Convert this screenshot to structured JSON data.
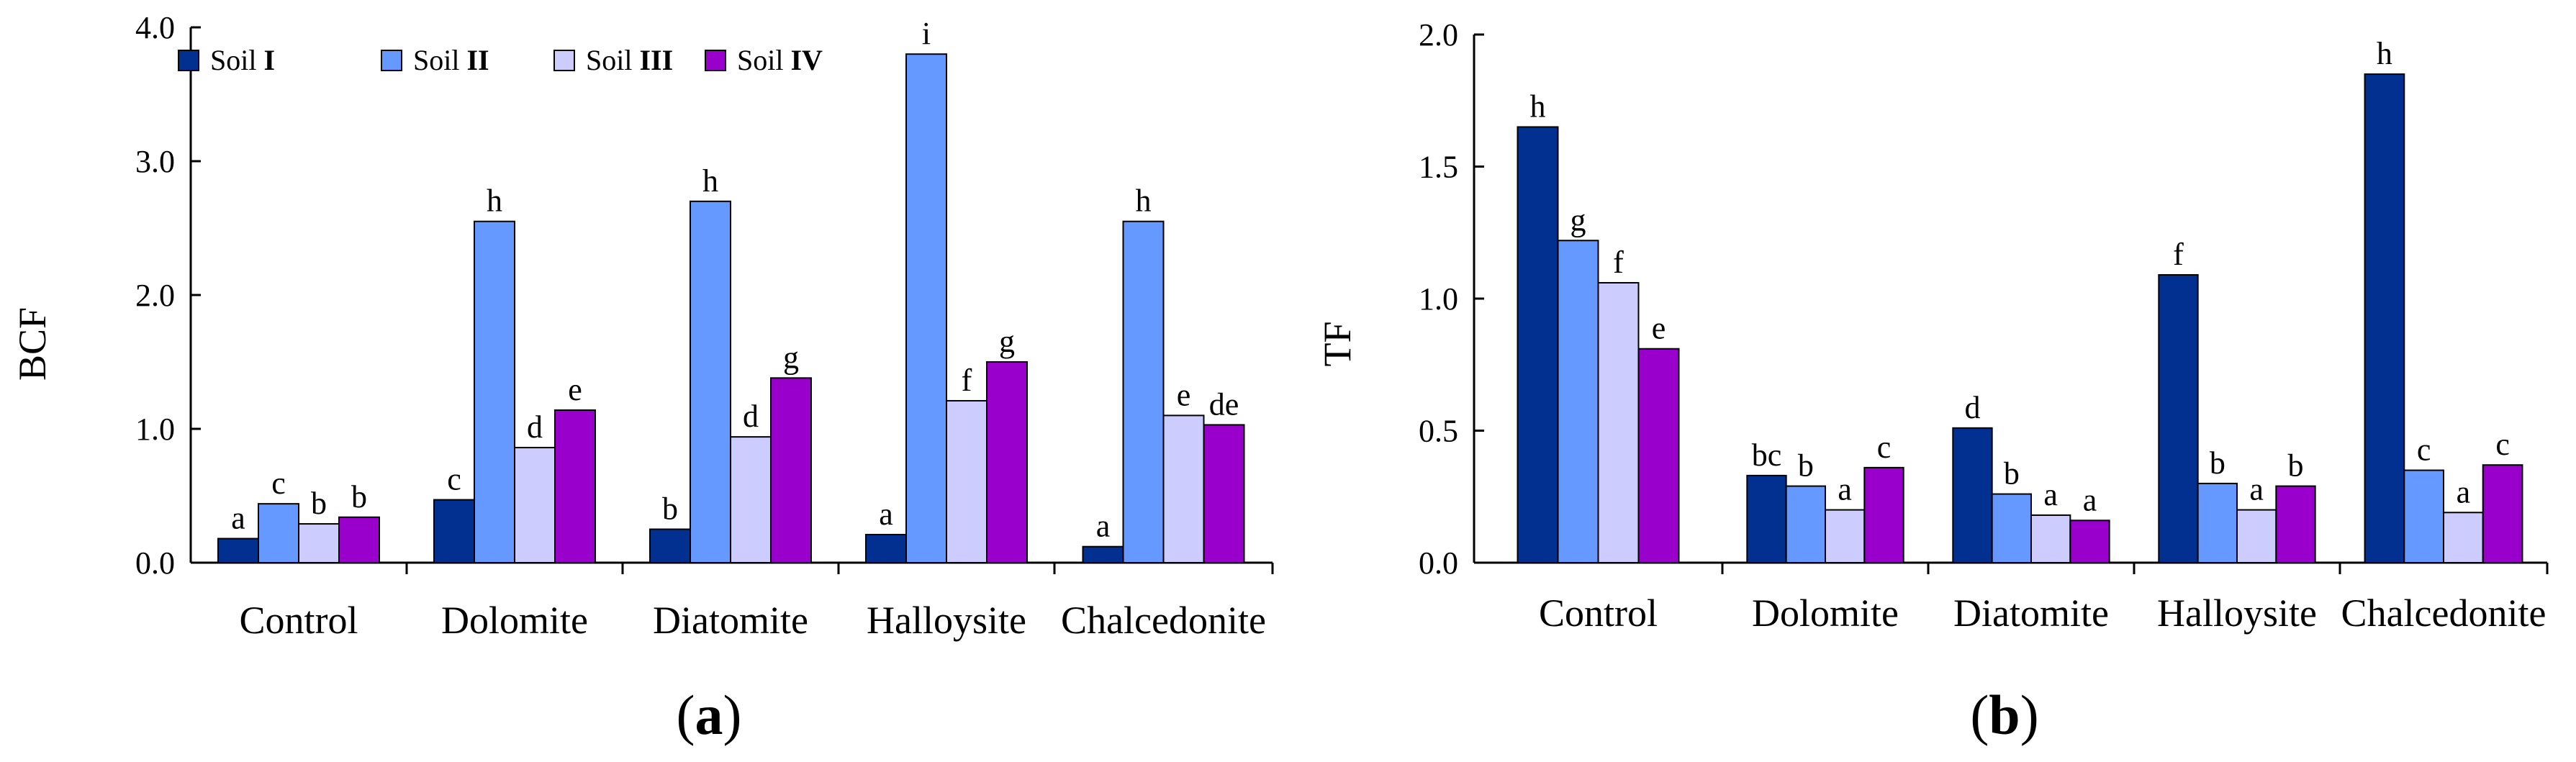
{
  "colors": {
    "soil_1": "#013090",
    "soil_2": "#6699FF",
    "soil_3": "#CCCCFF",
    "soil_4": "#9900CC",
    "bar_stroke": "#000000",
    "axis": "#000000"
  },
  "legend": [
    {
      "prefix": "Soil",
      "numeral": "I"
    },
    {
      "prefix": "Soil",
      "numeral": "II"
    },
    {
      "prefix": "Soil",
      "numeral": "III"
    },
    {
      "prefix": "Soil",
      "numeral": "IV"
    }
  ],
  "chart_data": [
    {
      "type": "bar",
      "panel_label": "a",
      "ylabel": "BCF",
      "xlabel": "",
      "ylim": [
        0,
        4
      ],
      "yticks": [
        "0.0",
        "1.0",
        "2.0",
        "3.0",
        "4.0"
      ],
      "categories": [
        "Control",
        "Dolomite",
        "Diatomite",
        "Halloysite",
        "Chalcedonite"
      ],
      "legend_position": "top-left",
      "series": [
        {
          "name": "Soil I",
          "values": [
            0.18,
            0.47,
            0.25,
            0.21,
            0.12
          ],
          "letters": [
            "a",
            "c",
            "b",
            "a",
            "a"
          ]
        },
        {
          "name": "Soil II",
          "values": [
            0.44,
            2.55,
            2.7,
            3.8,
            2.55
          ],
          "letters": [
            "c",
            "h",
            "h",
            "i",
            "h"
          ]
        },
        {
          "name": "Soil III",
          "values": [
            0.29,
            0.86,
            0.94,
            1.21,
            1.1
          ],
          "letters": [
            "b",
            "d",
            "d",
            "f",
            "e"
          ]
        },
        {
          "name": "Soil IV",
          "values": [
            0.34,
            1.14,
            1.38,
            1.5,
            1.03
          ],
          "letters": [
            "b",
            "e",
            "g",
            "g",
            "de"
          ]
        }
      ]
    },
    {
      "type": "bar",
      "panel_label": "b",
      "ylabel": "TF",
      "xlabel": "",
      "ylim": [
        0,
        2
      ],
      "yticks": [
        "0.0",
        "0.5",
        "1.0",
        "1.5",
        "2.0"
      ],
      "categories": [
        "Control",
        "Dolomite",
        "Diatomite",
        "Halloysite",
        "Chalcedonite"
      ],
      "series": [
        {
          "name": "Soil I",
          "values": [
            1.65,
            0.33,
            0.51,
            1.09,
            1.85
          ],
          "letters": [
            "h",
            "bc",
            "d",
            "f",
            "h"
          ]
        },
        {
          "name": "Soil II",
          "values": [
            1.22,
            0.29,
            0.26,
            0.3,
            0.35
          ],
          "letters": [
            "g",
            "b",
            "b",
            "b",
            "c"
          ]
        },
        {
          "name": "Soil III",
          "values": [
            1.06,
            0.2,
            0.18,
            0.2,
            0.19
          ],
          "letters": [
            "f",
            "a",
            "a",
            "a",
            "a"
          ]
        },
        {
          "name": "Soil IV",
          "values": [
            0.81,
            0.36,
            0.16,
            0.29,
            0.37
          ],
          "letters": [
            "e",
            "c",
            "a",
            "b",
            "c"
          ]
        }
      ]
    }
  ]
}
